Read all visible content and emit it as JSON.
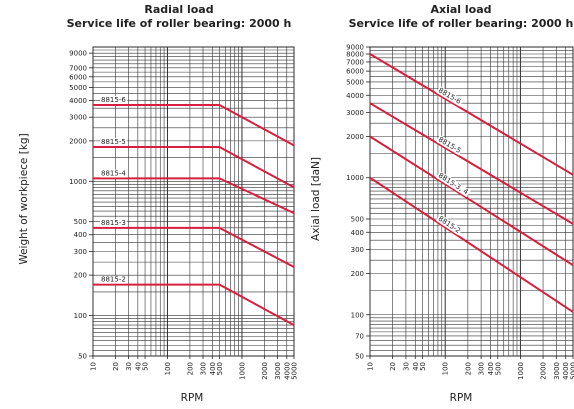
{
  "chart_data": [
    {
      "type": "line",
      "title": "Radial load",
      "subtitle": "Service life of roller bearing: 2000 h",
      "xlabel": "RPM",
      "ylabel": "Weight of workpiece [kg]",
      "x_scale": "log",
      "y_scale": "log",
      "xlim": [
        10,
        5000
      ],
      "ylim": [
        50,
        10000
      ],
      "x_ticks": [
        10,
        20,
        30,
        40,
        50,
        100,
        200,
        300,
        400,
        500,
        1000,
        2000,
        3000,
        4000,
        5000
      ],
      "x_tick_labels": [
        "10",
        "20",
        "30",
        "40",
        "50",
        "100",
        "200",
        "300",
        "400",
        "500",
        "1000",
        "2000",
        "3000",
        "4000",
        "5000"
      ],
      "y_ticks": [
        50,
        100,
        200,
        300,
        400,
        500,
        1000,
        2000,
        3000,
        4000,
        5000,
        6000,
        7000,
        9000
      ],
      "y_tick_labels": [
        "50",
        "100",
        "200",
        "300",
        "400",
        "500",
        "1000",
        "2000",
        "3000",
        "4000",
        "5000",
        "6000",
        "7000",
        "9000"
      ],
      "grid": true,
      "line_color": "#d81e3c",
      "series": [
        {
          "name": "8815-6",
          "x": [
            10,
            500,
            5000
          ],
          "y": [
            3700,
            3700,
            1850
          ]
        },
        {
          "name": "8815-5",
          "x": [
            10,
            500,
            5000
          ],
          "y": [
            1800,
            1800,
            900
          ]
        },
        {
          "name": "8815-4",
          "x": [
            10,
            500,
            5000
          ],
          "y": [
            1050,
            1050,
            580
          ]
        },
        {
          "name": "8815-3",
          "x": [
            10,
            500,
            5000
          ],
          "y": [
            450,
            450,
            230
          ]
        },
        {
          "name": "8815-2",
          "x": [
            10,
            500,
            5000
          ],
          "y": [
            170,
            170,
            85
          ]
        }
      ]
    },
    {
      "type": "line",
      "title": "Axial load",
      "subtitle": "Service life of roller bearing: 2000 h",
      "xlabel": "RPM",
      "ylabel": "Axial load [daN]",
      "x_scale": "log",
      "y_scale": "log",
      "xlim": [
        10,
        5000
      ],
      "ylim": [
        50,
        9000
      ],
      "x_ticks": [
        10,
        20,
        30,
        40,
        50,
        100,
        200,
        300,
        400,
        500,
        1000,
        2000,
        3000,
        4000,
        5000
      ],
      "x_tick_labels": [
        "10",
        "20",
        "30",
        "40",
        "50",
        "100",
        "200",
        "300",
        "400",
        "500",
        "1000",
        "2000",
        "3000",
        "4000",
        "5000"
      ],
      "y_ticks": [
        50,
        70,
        100,
        200,
        300,
        400,
        500,
        1000,
        2000,
        3000,
        4000,
        5000,
        6000,
        7000,
        8000,
        9000
      ],
      "y_tick_labels": [
        "50",
        "70",
        "100",
        "200",
        "300",
        "400",
        "500",
        "1000",
        "2000",
        "3000",
        "4000",
        "5000",
        "6000",
        "7000",
        "8000",
        "9000"
      ],
      "grid": true,
      "line_color": "#d81e3c",
      "series": [
        {
          "name": "8815-6",
          "x": [
            10,
            5000
          ],
          "y": [
            8000,
            1050
          ]
        },
        {
          "name": "8815-5",
          "x": [
            10,
            5000
          ],
          "y": [
            3500,
            460
          ]
        },
        {
          "name": "8815-3, 4",
          "x": [
            10,
            5000
          ],
          "y": [
            2000,
            230
          ]
        },
        {
          "name": "8815-2",
          "x": [
            10,
            5000
          ],
          "y": [
            1000,
            105
          ]
        }
      ]
    }
  ]
}
